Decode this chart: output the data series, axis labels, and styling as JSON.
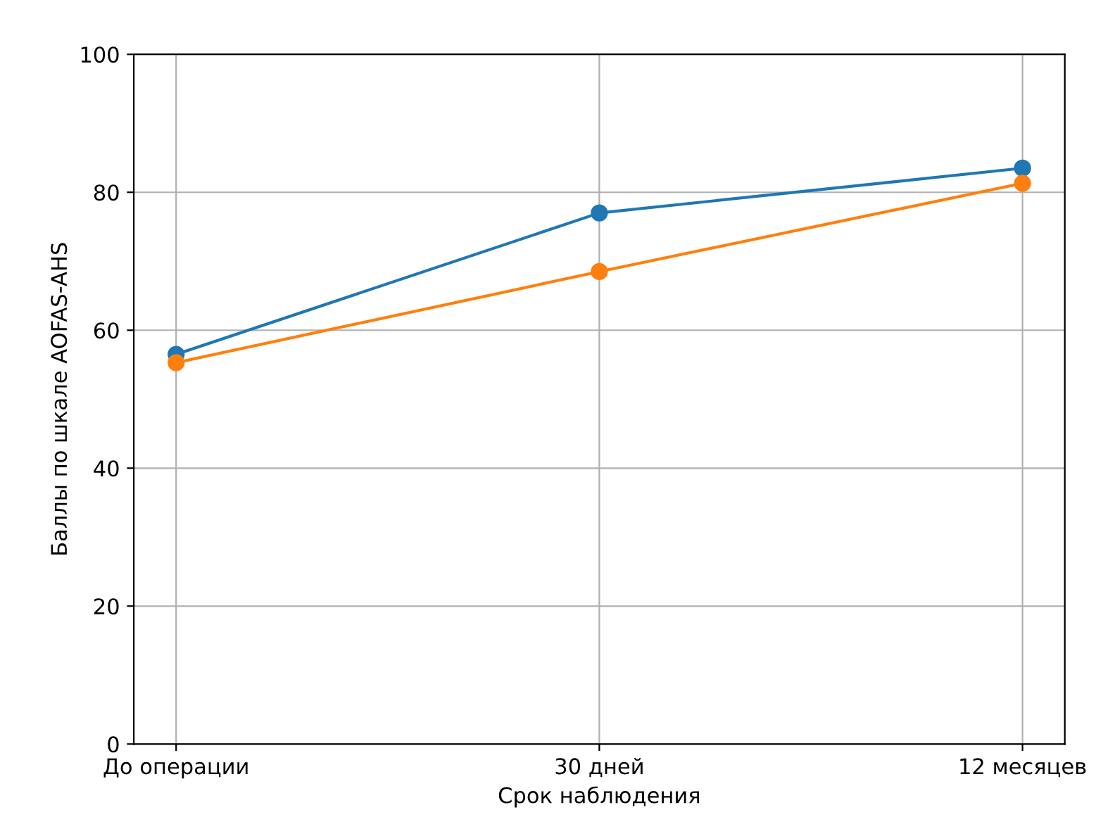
{
  "chart_data": {
    "type": "line",
    "xlabel": "Срок наблюдения",
    "ylabel": "Баллы по шкале AOFAS-AHS",
    "categories": [
      "До операции",
      "30 дней",
      "12 месяцев"
    ],
    "series": [
      {
        "color": "#1f77b4",
        "values": [
          56.5,
          77.0,
          83.5
        ]
      },
      {
        "color": "#ff7f0e",
        "values": [
          55.3,
          68.5,
          81.3
        ]
      }
    ],
    "ylim": [
      0,
      100
    ],
    "yticks": [
      0,
      20,
      40,
      60,
      80,
      100
    ],
    "grid": true,
    "marker": "circle",
    "line_style": "solid"
  }
}
